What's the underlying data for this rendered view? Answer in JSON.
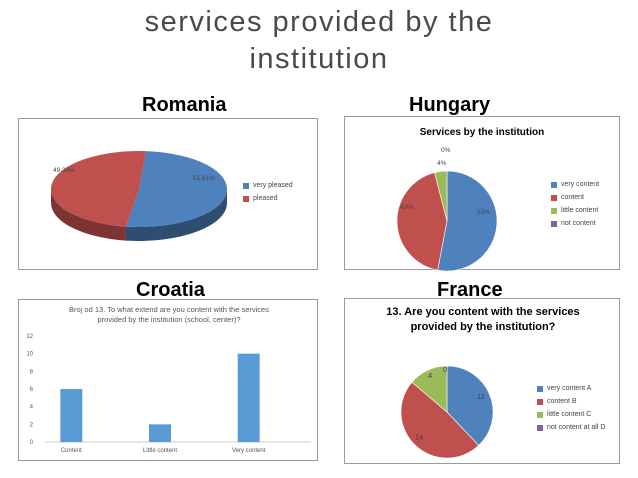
{
  "title_line1": "services provided by the",
  "title_line2": "institution",
  "labels": {
    "romania": "Romania",
    "hungary": "Hungary",
    "croatia": "Croatia",
    "france": "France"
  },
  "colors": {
    "blue": "#4f81bd",
    "red": "#c0504d",
    "green": "#9bbb59",
    "purple": "#8064a2",
    "bar": "#5b9bd5"
  },
  "chart_data": [
    {
      "type": "pie",
      "title": "",
      "categories": [
        "very pleased",
        "pleased"
      ],
      "values": [
        51.61,
        49.39
      ],
      "value_labels": [
        "51,61%",
        "49,39%"
      ],
      "legend": "right"
    },
    {
      "type": "pie",
      "title": "Services by the institution",
      "categories": [
        "very content",
        "content",
        "little content",
        "not content"
      ],
      "values": [
        53,
        43,
        4,
        0
      ],
      "value_labels": [
        "53%",
        "43%",
        "4%",
        "0%"
      ],
      "legend": "right"
    },
    {
      "type": "bar",
      "title": "Broj od 13. To what extend are you content with the services provided by the institution (school, center)?",
      "categories": [
        "Content",
        "Little content",
        "Very content"
      ],
      "values": [
        6,
        2,
        10
      ],
      "ylim": [
        0,
        12
      ],
      "yticks": [
        "0",
        "2",
        "4",
        "6",
        "8",
        "10",
        "12"
      ],
      "grid": false
    },
    {
      "type": "pie",
      "title": "13. Are you content with the services provided by the institution?",
      "categories": [
        "very content A",
        "content B",
        "little content C",
        "not content at all D"
      ],
      "values": [
        11,
        14,
        4,
        0
      ],
      "value_labels": [
        "11",
        "14",
        "4",
        "0"
      ],
      "legend": "right"
    }
  ]
}
